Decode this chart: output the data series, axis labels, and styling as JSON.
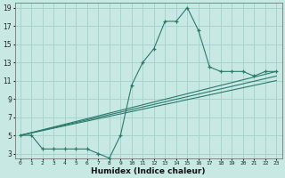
{
  "xlabel": "Humidex (Indice chaleur)",
  "xlim": [
    -0.5,
    23.5
  ],
  "ylim": [
    2.5,
    19.5
  ],
  "xticks": [
    0,
    1,
    2,
    3,
    4,
    5,
    6,
    7,
    8,
    9,
    10,
    11,
    12,
    13,
    14,
    15,
    16,
    17,
    18,
    19,
    20,
    21,
    22,
    23
  ],
  "yticks": [
    3,
    5,
    7,
    9,
    11,
    13,
    15,
    17,
    19
  ],
  "bg_color": "#c8e8e4",
  "line_color": "#2a7a6a",
  "grid_color": "#a8d4ce",
  "lines": [
    {
      "x": [
        0,
        1,
        2,
        3,
        4,
        5,
        6,
        7,
        8,
        9,
        10,
        11,
        12,
        13,
        14,
        15,
        16,
        17,
        18,
        19,
        20,
        21,
        22,
        23
      ],
      "y": [
        5,
        5,
        3.5,
        3.5,
        3.5,
        3.5,
        3.5,
        3,
        2.5,
        5,
        10.5,
        13,
        14.5,
        17.5,
        17.5,
        19,
        16.5,
        12.5,
        12,
        12,
        12,
        11.5,
        12,
        12
      ]
    },
    {
      "x": [
        0,
        23
      ],
      "y": [
        5,
        12
      ]
    },
    {
      "x": [
        0,
        23
      ],
      "y": [
        5,
        11.5
      ]
    },
    {
      "x": [
        0,
        23
      ],
      "y": [
        5,
        11
      ]
    }
  ]
}
